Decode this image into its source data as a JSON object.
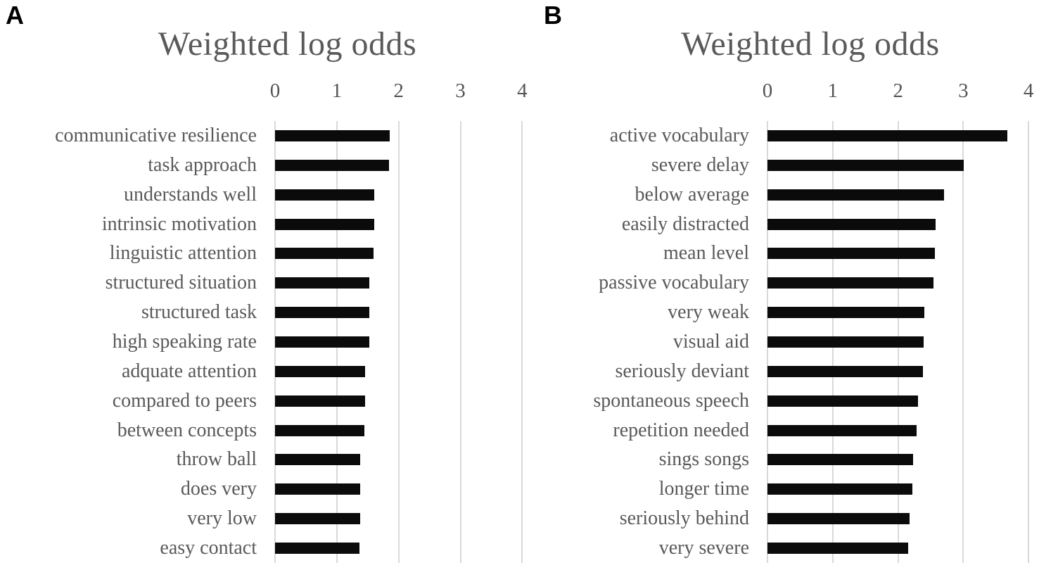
{
  "figure": {
    "background": "#ffffff",
    "bar_color": "#0b0b0b",
    "gridline_color": "#d9d9d9",
    "text_color": "#595959"
  },
  "chart_data": [
    {
      "panel": "A",
      "type": "bar",
      "orientation": "horizontal",
      "title": "Weighted log odds",
      "xlabel": "",
      "ylabel": "",
      "xticks": [
        0,
        1,
        2,
        3,
        4
      ],
      "xlim": [
        0,
        4.03
      ],
      "grid": true,
      "legend": false,
      "categories": [
        "communicative resilience",
        "task approach",
        "understands well",
        "intrinsic motivation",
        "linguistic attention",
        "structured situation",
        "structured task",
        "high speaking rate",
        "adquate attention",
        "compared to peers",
        "between concepts",
        "throw ball",
        "does very",
        "very low",
        "easy contact"
      ],
      "values": [
        1.85,
        1.84,
        1.6,
        1.6,
        1.59,
        1.53,
        1.52,
        1.52,
        1.46,
        1.46,
        1.45,
        1.38,
        1.38,
        1.38,
        1.37
      ]
    },
    {
      "panel": "B",
      "type": "bar",
      "orientation": "horizontal",
      "title": "Weighted log odds",
      "xlabel": "",
      "ylabel": "",
      "xticks": [
        0,
        1,
        2,
        3,
        4
      ],
      "xlim": [
        0,
        4.16
      ],
      "grid": true,
      "legend": false,
      "categories": [
        "active vocabulary",
        "severe delay",
        "below average",
        "easily distracted",
        "mean level",
        "passive vocabulary",
        "very weak",
        "visual aid",
        "seriously deviant",
        "spontaneous speech",
        "repetition needed",
        "sings songs",
        "longer time",
        "seriously behind",
        "very severe"
      ],
      "values": [
        3.67,
        3.01,
        2.7,
        2.58,
        2.57,
        2.54,
        2.4,
        2.39,
        2.38,
        2.31,
        2.28,
        2.23,
        2.22,
        2.18,
        2.16
      ]
    }
  ]
}
